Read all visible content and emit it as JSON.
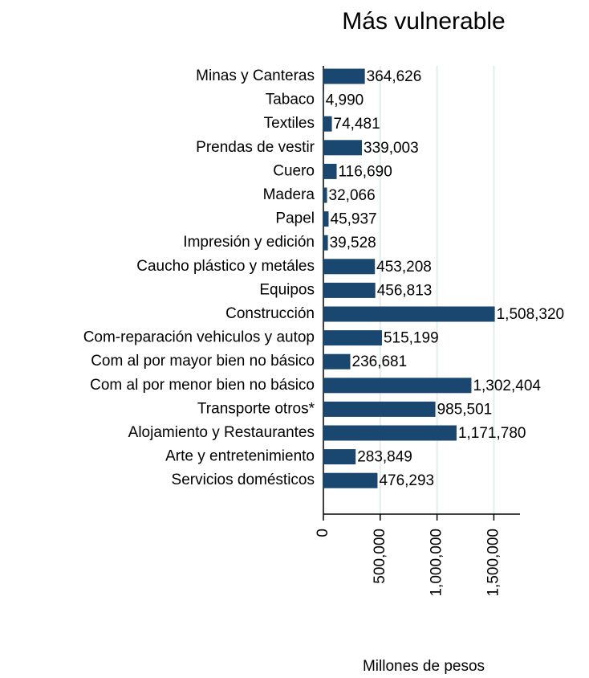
{
  "chart_data": {
    "type": "bar",
    "orientation": "horizontal",
    "title": "Más vulnerable",
    "xlabel": "Millones de pesos",
    "categories": [
      "Minas y Canteras",
      "Tabaco",
      "Textiles",
      "Prendas de vestir",
      "Cuero",
      "Madera",
      "Papel",
      "Impresión y edición",
      "Caucho plástico y metáles",
      "Equipos",
      "Construcción",
      "Com-reparación vehiculos y autop",
      "Com al por mayor bien no básico",
      "Com al por menor bien no básico",
      "Transporte otros*",
      "Alojamiento y Restaurantes",
      "Arte y entretenimiento",
      "Servicios domésticos"
    ],
    "values": [
      364626,
      4990,
      74481,
      339003,
      116690,
      32066,
      45937,
      39528,
      453208,
      456813,
      1508320,
      515199,
      236681,
      1302404,
      985501,
      1171780,
      283849,
      476293
    ],
    "value_labels": [
      "364,626",
      "4,990",
      "74,481",
      "339,003",
      "116,690",
      "32,066",
      "45,937",
      "39,528",
      "453,208",
      "456,813",
      "1,508,320",
      "515,199",
      "236,681",
      "1,302,404",
      "985,501",
      "1,171,780",
      "283,849",
      "476,293"
    ],
    "color": "#1a476f",
    "xlim": [
      0,
      1730000
    ],
    "xticks": [
      0,
      {
        "value": 500000,
        "label": "500,000"
      },
      {
        "value": 1000000,
        "label": "1,000,000"
      },
      {
        "value": 1500000,
        "label": "1,500,000"
      }
    ],
    "grid": true
  }
}
